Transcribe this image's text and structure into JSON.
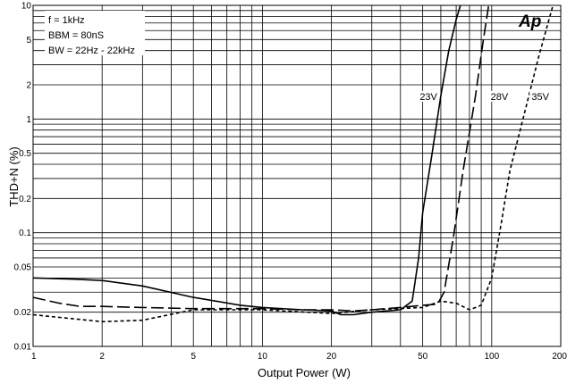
{
  "chart_data": {
    "type": "line",
    "xlabel": "Output Power (W)",
    "ylabel": "THD+N (%)",
    "xscale": "log",
    "yscale": "log",
    "xlim": [
      1,
      200
    ],
    "ylim": [
      0.01,
      10
    ],
    "x_ticks": [
      {
        "value": 1,
        "label": "1"
      },
      {
        "value": 2,
        "label": "2"
      },
      {
        "value": 5,
        "label": "5"
      },
      {
        "value": 10,
        "label": "10"
      },
      {
        "value": 20,
        "label": "20"
      },
      {
        "value": 50,
        "label": "50"
      },
      {
        "value": 100,
        "label": "100"
      },
      {
        "value": 200,
        "label": "200"
      }
    ],
    "y_ticks": [
      {
        "value": 0.01,
        "label": "0.01"
      },
      {
        "value": 0.02,
        "label": "0.02"
      },
      {
        "value": 0.05,
        "label": "0.05"
      },
      {
        "value": 0.1,
        "label": "0.1"
      },
      {
        "value": 0.2,
        "label": "0.2"
      },
      {
        "value": 0.5,
        "label": "0.5"
      },
      {
        "value": 1,
        "label": "1"
      },
      {
        "value": 2,
        "label": "2"
      },
      {
        "value": 5,
        "label": "5"
      },
      {
        "value": 10,
        "label": "10"
      }
    ],
    "grid": true,
    "conditions": [
      "f = 1kHz",
      "BBM = 80nS",
      "BW = 22Hz - 22kHz"
    ],
    "logo": "Ap",
    "series": [
      {
        "name": "23V",
        "style": "solid",
        "color": "#000000",
        "x": [
          1,
          1.5,
          2,
          3,
          5,
          8,
          10,
          15,
          20,
          22,
          25,
          30,
          40,
          45,
          48,
          50,
          55,
          60,
          65,
          70,
          73
        ],
        "y": [
          0.04,
          0.039,
          0.038,
          0.034,
          0.027,
          0.023,
          0.022,
          0.021,
          0.0205,
          0.019,
          0.019,
          0.02,
          0.021,
          0.025,
          0.06,
          0.15,
          0.5,
          1.6,
          4.0,
          7.5,
          10
        ]
      },
      {
        "name": "28V",
        "style": "dashed",
        "color": "#000000",
        "x": [
          1,
          1.3,
          1.6,
          2,
          3,
          5,
          10,
          15,
          20,
          25,
          30,
          40,
          50,
          58,
          62,
          68,
          75,
          85,
          92,
          97
        ],
        "y": [
          0.027,
          0.024,
          0.0225,
          0.0225,
          0.022,
          0.0215,
          0.0215,
          0.021,
          0.021,
          0.0205,
          0.021,
          0.022,
          0.023,
          0.0235,
          0.03,
          0.09,
          0.35,
          1.6,
          5.0,
          10
        ]
      },
      {
        "name": "35V",
        "style": "dotted",
        "color": "#000000",
        "x": [
          1,
          1.5,
          2,
          3,
          5,
          10,
          20,
          30,
          50,
          60,
          70,
          80,
          90,
          100,
          110,
          120,
          140,
          160,
          185
        ],
        "y": [
          0.019,
          0.0175,
          0.0165,
          0.017,
          0.021,
          0.021,
          0.0195,
          0.021,
          0.022,
          0.025,
          0.024,
          0.021,
          0.023,
          0.04,
          0.12,
          0.35,
          1.2,
          3.5,
          10
        ]
      }
    ],
    "series_labels": [
      {
        "text": "23V",
        "x": 53,
        "y": 1.5
      },
      {
        "text": "28V",
        "x": 108,
        "y": 1.5
      },
      {
        "text": "35V",
        "x": 163,
        "y": 1.5
      }
    ]
  }
}
